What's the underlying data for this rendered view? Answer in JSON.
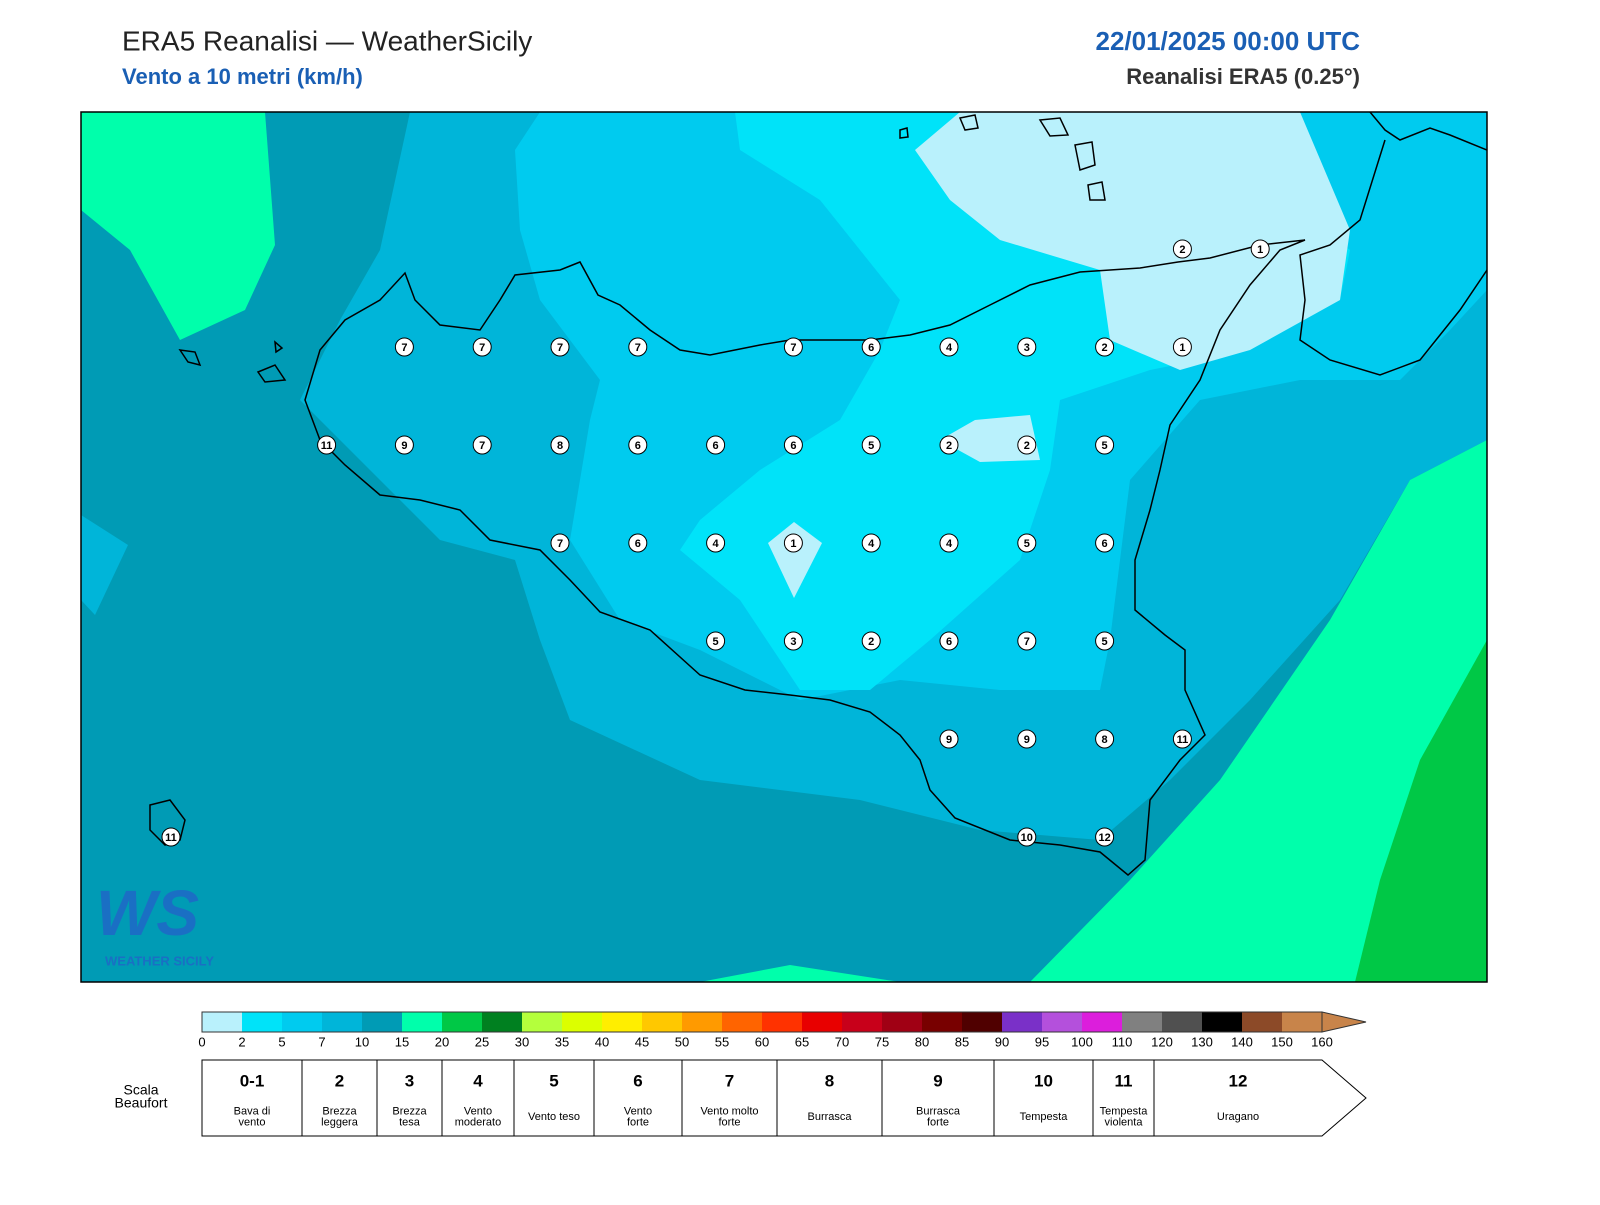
{
  "header": {
    "title": "ERA5 Reanalisi — WeatherSicily",
    "subtitle": "Vento a 10 metri (km/h)",
    "datetime": "22/01/2025 00:00 UTC",
    "source": "Reanalisi ERA5 (0.25°)"
  },
  "map": {
    "point_grid": [
      [
        null,
        null,
        null,
        null,
        null,
        null,
        null,
        null,
        null,
        null,
        null,
        null,
        null,
        2,
        1
      ],
      [
        null,
        null,
        null,
        7,
        7,
        7,
        7,
        null,
        7,
        6,
        4,
        3,
        2,
        1,
        null
      ],
      [
        null,
        null,
        11,
        9,
        7,
        8,
        6,
        6,
        6,
        5,
        2,
        2,
        5,
        null,
        null
      ],
      [
        null,
        null,
        null,
        null,
        null,
        7,
        6,
        4,
        1,
        4,
        4,
        5,
        6,
        null,
        null
      ],
      [
        null,
        null,
        null,
        null,
        null,
        null,
        null,
        5,
        3,
        2,
        6,
        7,
        5,
        null,
        null
      ],
      [
        null,
        null,
        null,
        null,
        null,
        null,
        null,
        null,
        null,
        null,
        9,
        9,
        8,
        11,
        null
      ],
      [
        11,
        null,
        null,
        null,
        null,
        null,
        null,
        null,
        null,
        null,
        null,
        10,
        12,
        null,
        null
      ]
    ],
    "logo": {
      "mark": "WS",
      "text": "WEATHER SICILY"
    }
  },
  "colorbar": {
    "ticks": [
      0,
      2,
      5,
      7,
      10,
      15,
      20,
      25,
      30,
      35,
      40,
      45,
      50,
      55,
      60,
      65,
      70,
      75,
      80,
      85,
      90,
      95,
      100,
      110,
      120,
      130,
      140,
      150,
      160
    ],
    "colors": [
      "#b9f1fc",
      "#00e3f9",
      "#00cbef",
      "#00b5d9",
      "#009bb5",
      "#00ffab",
      "#00c846",
      "#008020",
      "#b4ff3c",
      "#dcff00",
      "#ffee00",
      "#ffc800",
      "#ff9a00",
      "#ff6400",
      "#ff3200",
      "#e80000",
      "#c8001a",
      "#a00014",
      "#780000",
      "#500000",
      "#7a30c8",
      "#b450dc",
      "#dc1edc",
      "#808080",
      "#505050",
      "#000000",
      "#8c4a28",
      "#c8844a"
    ],
    "extend_color": "#c8844a"
  },
  "beaufort": {
    "label": [
      "Scala",
      "Beaufort"
    ],
    "levels": [
      {
        "force": "0-1",
        "desc": [
          "Bava di",
          "vento"
        ]
      },
      {
        "force": "2",
        "desc": [
          "Brezza",
          "leggera"
        ]
      },
      {
        "force": "3",
        "desc": [
          "Brezza",
          "tesa"
        ]
      },
      {
        "force": "4",
        "desc": [
          "Vento",
          "moderato"
        ]
      },
      {
        "force": "5",
        "desc": [
          "Vento teso"
        ]
      },
      {
        "force": "6",
        "desc": [
          "Vento",
          "forte"
        ]
      },
      {
        "force": "7",
        "desc": [
          "Vento molto",
          "forte"
        ]
      },
      {
        "force": "8",
        "desc": [
          "Burrasca"
        ]
      },
      {
        "force": "9",
        "desc": [
          "Burrasca",
          "forte"
        ]
      },
      {
        "force": "10",
        "desc": [
          "Tempesta"
        ]
      },
      {
        "force": "11",
        "desc": [
          "Tempesta",
          "violenta"
        ]
      },
      {
        "force": "12",
        "desc": [
          "Uragano"
        ]
      }
    ]
  }
}
